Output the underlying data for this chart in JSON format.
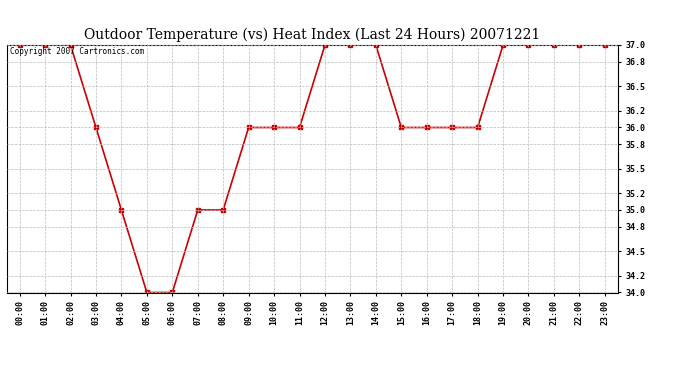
{
  "title": "Outdoor Temperature (vs) Heat Index (Last 24 Hours) 20071221",
  "copyright_text": "Copyright 2007 Cartronics.com",
  "x_labels": [
    "00:00",
    "01:00",
    "02:00",
    "03:00",
    "04:00",
    "05:00",
    "06:00",
    "07:00",
    "08:00",
    "09:00",
    "10:00",
    "11:00",
    "12:00",
    "13:00",
    "14:00",
    "15:00",
    "16:00",
    "17:00",
    "18:00",
    "19:00",
    "20:00",
    "21:00",
    "22:00",
    "23:00"
  ],
  "hours": [
    0,
    1,
    2,
    3,
    4,
    5,
    6,
    7,
    8,
    9,
    10,
    11,
    12,
    13,
    14,
    15,
    16,
    17,
    18,
    19,
    20,
    21,
    22,
    23
  ],
  "temperatures": [
    37.0,
    37.0,
    37.0,
    36.0,
    35.0,
    34.0,
    34.0,
    35.0,
    35.0,
    36.0,
    36.0,
    36.0,
    37.0,
    37.0,
    37.0,
    36.0,
    36.0,
    36.0,
    36.0,
    37.0,
    37.0,
    37.0,
    37.0,
    37.0
  ],
  "line_color": "#cc0000",
  "marker": "s",
  "marker_size": 2.5,
  "line_width": 1.2,
  "ylim": [
    34.0,
    37.0
  ],
  "ytick_values": [
    34.0,
    34.2,
    34.5,
    34.8,
    35.0,
    35.2,
    35.5,
    35.8,
    36.0,
    36.2,
    36.5,
    36.8,
    37.0
  ],
  "grid_color": "#bbbbbb",
  "grid_linestyle": "--",
  "background_color": "#ffffff",
  "plot_background": "#ffffff",
  "title_fontsize": 10,
  "tick_fontsize": 6,
  "copyright_fontsize": 5.5
}
